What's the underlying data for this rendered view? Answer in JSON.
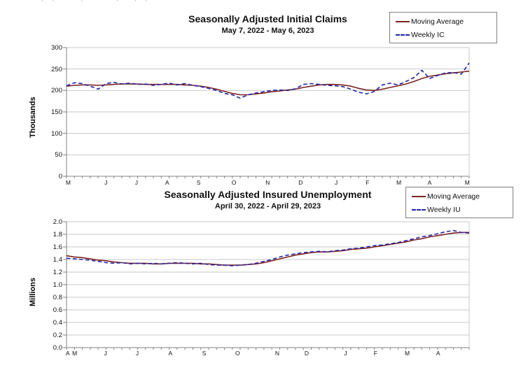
{
  "page": {
    "top_clipped_text": ".,  ,.  .-  ,.        ,.  -,  ,."
  },
  "colors": {
    "moving_average": "#7B2222",
    "weekly": "#2424A8",
    "gridline": "#C9C9C9",
    "axis": "#808080"
  },
  "chart_data": [
    {
      "type": "line",
      "title": "Seasonally Adjusted Initial Claims",
      "subtitle": "May 7, 2022 - May 6, 2023",
      "xlabel": "",
      "ylabel": "Thousands",
      "ylim": [
        0,
        300
      ],
      "ytick_step": 50,
      "ytick_labels": [
        "0",
        "50",
        "100",
        "150",
        "200",
        "250",
        "300"
      ],
      "grid": "horizontal",
      "legend_position": "top-right",
      "x_tick_labels": [
        {
          "label": "M",
          "pos": 0.005
        },
        {
          "label": "J",
          "pos": 0.101
        },
        {
          "label": "J",
          "pos": 0.177
        },
        {
          "label": "A",
          "pos": 0.252
        },
        {
          "label": "S",
          "pos": 0.33
        },
        {
          "label": "O",
          "pos": 0.417
        },
        {
          "label": "N",
          "pos": 0.501
        },
        {
          "label": "D",
          "pos": 0.583
        },
        {
          "label": "J",
          "pos": 0.673
        },
        {
          "label": "F",
          "pos": 0.75
        },
        {
          "label": "M",
          "pos": 0.826
        },
        {
          "label": "A",
          "pos": 0.904
        },
        {
          "label": "M",
          "pos": 0.996
        }
      ],
      "series": [
        {
          "name": "Moving Average",
          "style": "solid",
          "color": "#7B2222",
          "values": [
            210,
            212,
            213,
            213,
            212,
            213,
            214,
            215,
            215,
            215,
            214,
            214,
            214,
            214,
            214,
            213,
            212,
            210,
            207,
            203,
            198,
            193,
            190,
            190,
            192,
            194,
            197,
            199,
            201,
            203,
            207,
            210,
            213,
            214,
            214,
            213,
            210,
            205,
            201,
            200,
            203,
            207,
            211,
            215,
            221,
            228,
            233,
            236,
            239,
            241,
            243,
            245
          ]
        },
        {
          "name": "Weekly IC",
          "style": "dashed",
          "color": "#2424A8",
          "values": [
            211,
            218,
            216,
            210,
            203,
            216,
            219,
            215,
            217,
            214,
            215,
            212,
            214,
            217,
            213,
            216,
            212,
            209,
            205,
            200,
            193,
            190,
            182,
            190,
            194,
            197,
            200,
            201,
            200,
            204,
            214,
            216,
            214,
            212,
            211,
            209,
            203,
            196,
            192,
            198,
            213,
            217,
            213,
            221,
            230,
            247,
            228,
            235,
            241,
            242,
            238,
            264
          ]
        }
      ]
    },
    {
      "type": "line",
      "title": "Seasonally Adjusted Insured Unemployment",
      "subtitle": "April 30, 2022 - April 29, 2023",
      "xlabel": "",
      "ylabel": "Millions",
      "ylim": [
        0,
        2.0
      ],
      "ytick_step": 0.2,
      "ytick_labels": [
        "0.0",
        "0.2",
        "0.4",
        "0.6",
        "0.8",
        "1.0",
        "1.2",
        "1.4",
        "1.6",
        "1.8",
        "2.0"
      ],
      "grid": "horizontal",
      "legend_position": "top-right",
      "x_tick_labels": [
        {
          "label": "A",
          "pos": 0.005
        },
        {
          "label": "M",
          "pos": 0.021
        },
        {
          "label": "J",
          "pos": 0.1
        },
        {
          "label": "J",
          "pos": 0.179
        },
        {
          "label": "A",
          "pos": 0.26
        },
        {
          "label": "S",
          "pos": 0.344
        },
        {
          "label": "O",
          "pos": 0.426
        },
        {
          "label": "N",
          "pos": 0.525
        },
        {
          "label": "D",
          "pos": 0.598
        },
        {
          "label": "J",
          "pos": 0.696
        },
        {
          "label": "F",
          "pos": 0.77
        },
        {
          "label": "M",
          "pos": 0.847
        },
        {
          "label": "A",
          "pos": 0.925
        }
      ],
      "series": [
        {
          "name": "Moving Average",
          "style": "solid",
          "color": "#7B2222",
          "values": [
            1.46,
            1.44,
            1.43,
            1.41,
            1.39,
            1.38,
            1.36,
            1.35,
            1.34,
            1.34,
            1.34,
            1.33,
            1.33,
            1.34,
            1.34,
            1.34,
            1.34,
            1.33,
            1.33,
            1.32,
            1.31,
            1.31,
            1.31,
            1.32,
            1.33,
            1.35,
            1.38,
            1.41,
            1.44,
            1.47,
            1.49,
            1.51,
            1.52,
            1.52,
            1.53,
            1.54,
            1.56,
            1.57,
            1.58,
            1.6,
            1.62,
            1.64,
            1.66,
            1.68,
            1.71,
            1.73,
            1.76,
            1.78,
            1.8,
            1.82,
            1.83,
            1.83
          ]
        },
        {
          "name": "Weekly IU",
          "style": "dashed",
          "color": "#2424A8",
          "values": [
            1.42,
            1.41,
            1.4,
            1.39,
            1.37,
            1.35,
            1.34,
            1.35,
            1.33,
            1.34,
            1.33,
            1.34,
            1.33,
            1.34,
            1.35,
            1.34,
            1.33,
            1.34,
            1.32,
            1.31,
            1.31,
            1.3,
            1.31,
            1.32,
            1.34,
            1.37,
            1.4,
            1.44,
            1.47,
            1.49,
            1.51,
            1.52,
            1.53,
            1.52,
            1.54,
            1.55,
            1.57,
            1.58,
            1.6,
            1.62,
            1.63,
            1.65,
            1.67,
            1.7,
            1.73,
            1.76,
            1.78,
            1.81,
            1.84,
            1.86,
            1.83,
            1.82
          ]
        }
      ]
    }
  ]
}
